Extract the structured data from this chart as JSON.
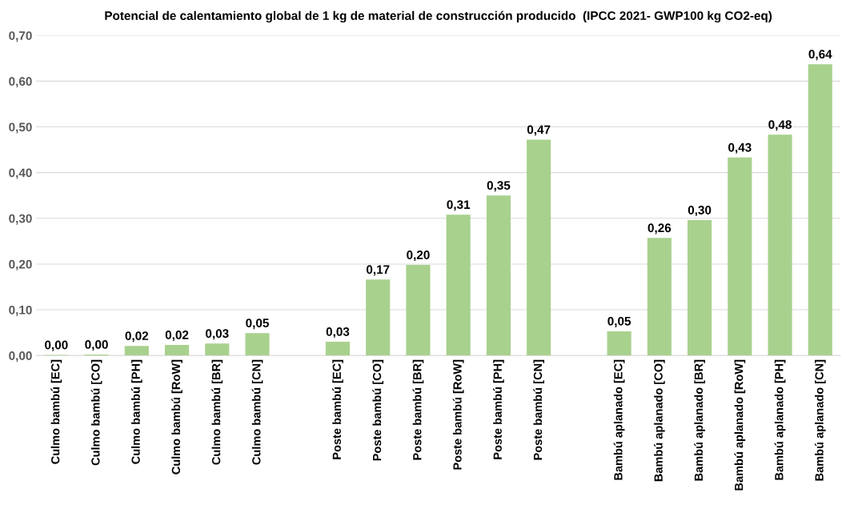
{
  "chart_data": {
    "type": "bar",
    "title": "Potencial de calentamiento global de 1 kg de material de construcción producido  (IPCC 2021- GWP100 kg CO2-eq)",
    "categories": [
      "Culmo bambú [EC]",
      "Culmo bambú [CO]",
      "Culmo bambú [PH]",
      "Culmo bambú [RoW]",
      "Culmo bambú [BR]",
      "Culmo bambú [CN]",
      null,
      "Poste bambú [EC]",
      "Poste bambú [CO]",
      "Poste bambú [BR]",
      "Poste bambú [RoW]",
      "Poste bambú [PH]",
      "Poste bambú [CN]",
      null,
      "Bambú aplanado [EC]",
      "Bambú aplanado [CO]",
      "Bambú aplanado [BR]",
      "Bambú aplanado [RoW]",
      "Bambú aplanado [PH]",
      "Bambú aplanado [CN]"
    ],
    "values": [
      0.001,
      0.002,
      0.021,
      0.023,
      0.026,
      0.049,
      null,
      0.03,
      0.166,
      0.198,
      0.308,
      0.35,
      0.472,
      null,
      0.053,
      0.257,
      0.296,
      0.433,
      0.483,
      0.637
    ],
    "value_labels": [
      "0,00",
      "0,00",
      "0,02",
      "0,02",
      "0,03",
      "0,05",
      null,
      "0,03",
      "0,17",
      "0,20",
      "0,31",
      "0,35",
      "0,47",
      null,
      "0,05",
      "0,26",
      "0,30",
      "0,43",
      "0,48",
      "0,64"
    ],
    "color": "#a9d18e",
    "ylim": [
      0,
      0.7
    ],
    "yticks": [
      {
        "value": 0,
        "label": "0,00"
      },
      {
        "value": 0.1,
        "label": "0,10"
      },
      {
        "value": 0.2,
        "label": "0,20"
      },
      {
        "value": 0.3,
        "label": "0,30"
      },
      {
        "value": 0.4,
        "label": "0,40"
      },
      {
        "value": 0.5,
        "label": "0,50"
      },
      {
        "value": 0.6,
        "label": "0,60"
      },
      {
        "value": 0.7,
        "label": "0,70"
      }
    ],
    "grid": "y"
  }
}
